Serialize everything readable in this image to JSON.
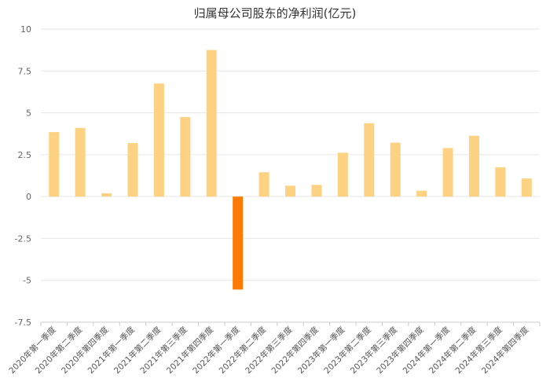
{
  "chart_data": {
    "type": "bar",
    "title": "归属母公司股东的净利润(亿元)",
    "xlabel": "",
    "ylabel": "",
    "ylim": [
      -7.5,
      10
    ],
    "yticks": [
      10,
      7.5,
      5,
      2.5,
      0,
      -2.5,
      -5,
      -7.5
    ],
    "ytick_labels": [
      "10",
      "7.5",
      "5",
      "2.5",
      "0",
      "-2.5",
      "-5",
      "-7.5"
    ],
    "grid": true,
    "legend": "none",
    "categories": [
      "2020年第一季度",
      "2020年第二季度",
      "2020年第四季度",
      "2021年第一季度",
      "2021年第二季度",
      "2021年第三季度",
      "2021年第四季度",
      "2022年第一季度",
      "2022年第二季度",
      "2022年第三季度",
      "2022年第四季度",
      "2023年第一季度",
      "2023年第二季度",
      "2023年第三季度",
      "2023年第四季度",
      "2024年第一季度",
      "2024年第二季度",
      "2024年第三季度",
      "2024年第四季度"
    ],
    "values": [
      3.85,
      4.1,
      0.2,
      3.2,
      6.75,
      4.75,
      8.75,
      -5.55,
      1.45,
      0.65,
      0.7,
      2.62,
      4.38,
      3.22,
      0.35,
      2.9,
      3.63,
      1.75,
      1.08
    ],
    "colors": {
      "positive": "#fdd283",
      "negative": "#fd7a06",
      "grid": "#e6e6e6",
      "axis": "#cccccc"
    }
  }
}
